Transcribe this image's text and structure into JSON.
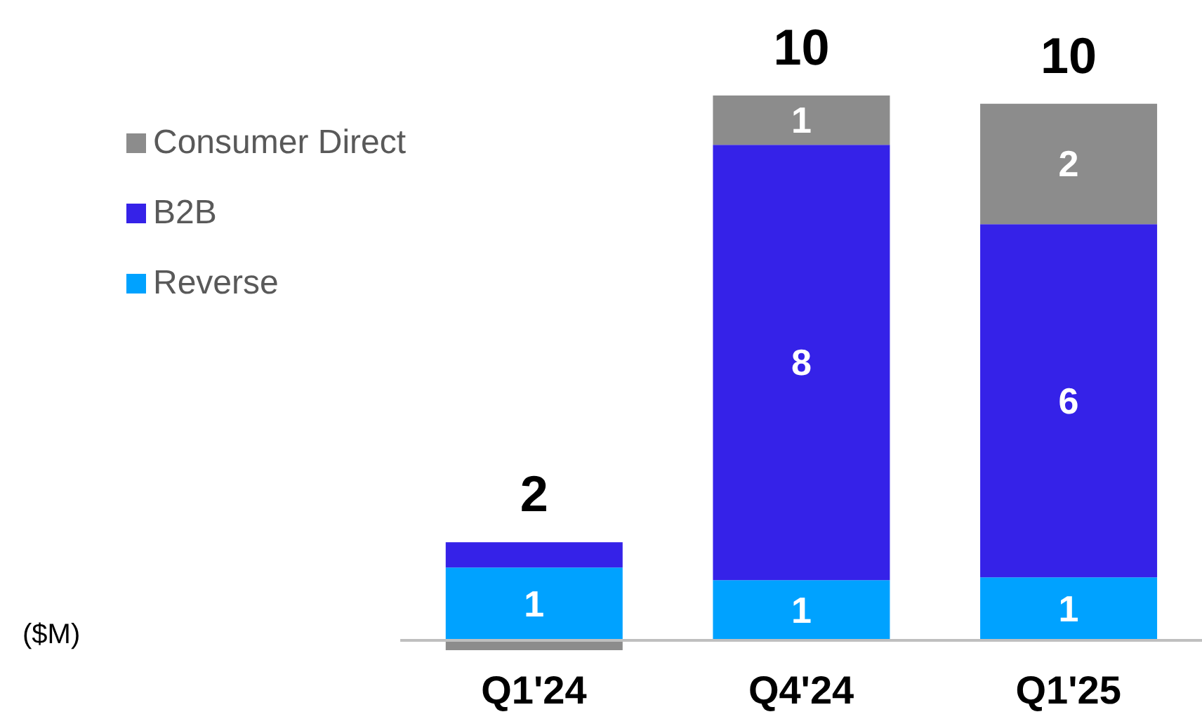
{
  "chart_data": {
    "type": "bar",
    "stacked": true,
    "categories": [
      "Q1'24",
      "Q4'24",
      "Q1'25"
    ],
    "series": [
      {
        "name": "Reverse",
        "color": "#00a2ff",
        "values": [
          1.33,
          1.1,
          1.15
        ],
        "value_labels": [
          "1",
          "1",
          "1"
        ]
      },
      {
        "name": "B2B",
        "color": "#3522e8",
        "values": [
          0.46,
          7.95,
          6.45
        ],
        "value_labels": [
          null,
          "8",
          "6"
        ]
      },
      {
        "name": "Consumer Direct",
        "color": "#8c8c8c",
        "values": [
          -0.18,
          0.9,
          2.2
        ],
        "value_labels": [
          null,
          "1",
          "2"
        ]
      }
    ],
    "totals": [
      "2",
      "10",
      "10"
    ],
    "annotations": [
      "($M)"
    ],
    "legend": "top left"
  }
}
